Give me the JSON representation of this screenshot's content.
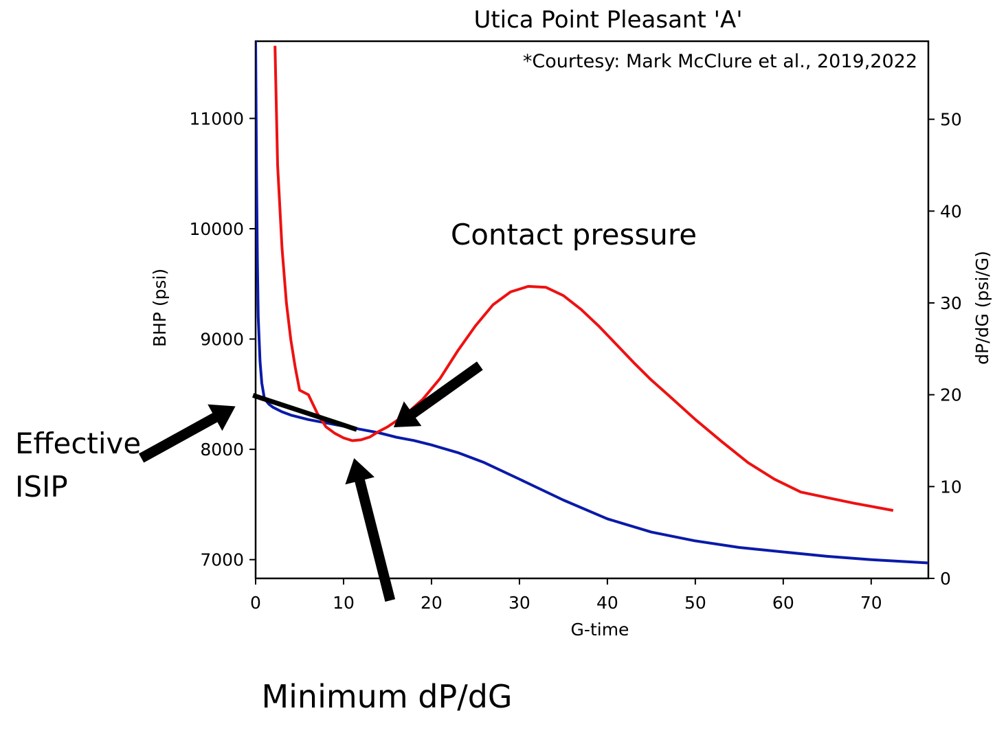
{
  "chart_data": {
    "type": "line",
    "title": "Utica Point Pleasant 'A'",
    "note": "*Courtesy: Mark McClure et al., 2019,2022",
    "xlabel": "G-time",
    "ylabel_left": "BHP (psi)",
    "ylabel_right": "dP/dG (psi/G)",
    "xlim": [
      0,
      76.5
    ],
    "ylim_left": [
      6830,
      11700
    ],
    "ylim_right": [
      0,
      58.5
    ],
    "xticks": [
      "0",
      "10",
      "20",
      "30",
      "40",
      "50",
      "60",
      "70"
    ],
    "xtick_values": [
      0,
      10,
      20,
      30,
      40,
      50,
      60,
      70
    ],
    "yticks_left": [
      "7000",
      "8000",
      "9000",
      "10000",
      "11000"
    ],
    "ytick_values_left": [
      7000,
      8000,
      9000,
      10000,
      11000
    ],
    "yticks_right": [
      "0",
      "10",
      "20",
      "30",
      "40",
      "50"
    ],
    "ytick_values_right": [
      0,
      10,
      20,
      30,
      40,
      50
    ],
    "grid": false,
    "series": [
      {
        "axis": "left",
        "color": "#0a1aa8",
        "x": [
          0,
          0.1,
          0.2,
          0.3,
          0.5,
          0.7,
          1,
          1.5,
          2,
          3,
          4,
          6,
          8,
          10,
          12,
          14,
          16,
          18,
          20,
          23,
          26,
          30,
          35,
          40,
          45,
          50,
          55,
          60,
          65,
          70,
          76.5
        ],
        "y": [
          11700,
          10500,
          9700,
          9200,
          8800,
          8600,
          8460,
          8410,
          8380,
          8340,
          8310,
          8270,
          8240,
          8210,
          8180,
          8150,
          8110,
          8080,
          8040,
          7970,
          7880,
          7730,
          7540,
          7370,
          7250,
          7170,
          7110,
          7070,
          7030,
          7000,
          6970
        ]
      },
      {
        "axis": "right",
        "color": "#ee1111",
        "x": [
          2.2,
          2.5,
          3,
          3.5,
          4,
          4.5,
          5,
          6,
          7,
          8,
          9,
          10,
          11,
          12,
          13,
          14,
          15,
          17,
          19,
          21,
          23,
          25,
          27,
          29,
          31,
          33,
          35,
          37,
          39,
          41,
          43,
          45,
          47,
          50,
          53,
          56,
          59,
          62,
          65,
          68,
          72.5
        ],
        "y": [
          58,
          45,
          36,
          30,
          26,
          23,
          20.5,
          20,
          18,
          16.5,
          15.8,
          15.3,
          15,
          15.1,
          15.4,
          16,
          16.5,
          17.8,
          19.5,
          21.8,
          24.8,
          27.5,
          29.8,
          31.2,
          31.8,
          31.7,
          30.8,
          29.3,
          27.5,
          25.5,
          23.5,
          21.6,
          19.9,
          17.3,
          14.9,
          12.6,
          10.8,
          9.4,
          8.8,
          8.2,
          7.4
        ]
      }
    ],
    "annotations": [
      {
        "label_lines": [
          "Contact pressure"
        ],
        "arrow_from": [
          25.5,
          8758
        ],
        "arrow_to": [
          15.7,
          8200
        ]
      },
      {
        "label_lines": [
          "Effective",
          "ISIP"
        ],
        "arrow_from": [
          -13,
          7920
        ],
        "arrow_to": [
          -2.3,
          8390
        ]
      },
      {
        "label_lines": [
          "Minimum dP/dG"
        ],
        "arrow_from": [
          15.3,
          6630
        ],
        "arrow_to": [
          11.2,
          7920
        ]
      }
    ],
    "extrapolation_line": {
      "x": [
        -0.3,
        11.5
      ],
      "y": [
        8490,
        8180
      ]
    }
  }
}
